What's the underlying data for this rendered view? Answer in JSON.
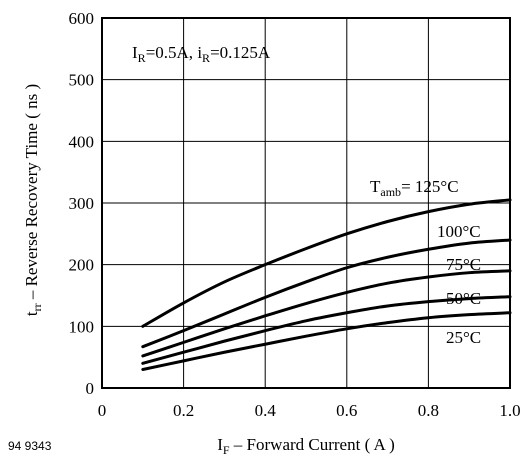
{
  "chart_data": {
    "type": "line",
    "xlabel": "I_F – Forward Current ( A )",
    "xlabel_main": "I",
    "xlabel_sub": "F",
    "xlabel_rest": " – Forward Current ( A )",
    "ylabel": "t_rr – Reverse Recovery Time ( ns )",
    "ylabel_main": "t",
    "ylabel_sub": "rr",
    "ylabel_rest": " – Reverse Recovery Time ( ns )",
    "xlim": [
      0,
      1.0
    ],
    "ylim": [
      0,
      600
    ],
    "x_ticks": [
      0,
      0.2,
      0.4,
      0.6,
      0.8,
      1.0
    ],
    "x_tick_labels": [
      "0",
      "0.2",
      "0.4",
      "0.6",
      "0.8",
      "1.0"
    ],
    "y_ticks": [
      0,
      100,
      200,
      300,
      400,
      500,
      600
    ],
    "y_tick_labels": [
      "0",
      "100",
      "200",
      "300",
      "400",
      "500",
      "600"
    ],
    "grid": true,
    "annotation": {
      "ir_main": "I",
      "ir_sub": "R",
      "ir_val": "=0.5A, ",
      "irr_main": "i",
      "irr_sub": "R",
      "irr_val": "=0.125A"
    },
    "series_label_prefix_main": "T",
    "series_label_prefix_sub": "amb",
    "series_label_prefix_eq": "=",
    "series": [
      {
        "name": "125°C",
        "x": [
          0.1,
          0.2,
          0.3,
          0.4,
          0.5,
          0.6,
          0.7,
          0.8,
          0.9,
          1.0
        ],
        "values": [
          100,
          138,
          172,
          200,
          226,
          250,
          270,
          286,
          298,
          305
        ]
      },
      {
        "name": "100°C",
        "x": [
          0.1,
          0.2,
          0.3,
          0.4,
          0.5,
          0.6,
          0.7,
          0.8,
          0.9,
          1.0
        ],
        "values": [
          67,
          93,
          120,
          147,
          172,
          195,
          212,
          225,
          235,
          240
        ]
      },
      {
        "name": "75°C",
        "x": [
          0.1,
          0.2,
          0.3,
          0.4,
          0.5,
          0.6,
          0.7,
          0.8,
          0.9,
          1.0
        ],
        "values": [
          52,
          74,
          96,
          117,
          137,
          155,
          170,
          180,
          187,
          190
        ]
      },
      {
        "name": "50°C",
        "x": [
          0.1,
          0.2,
          0.3,
          0.4,
          0.5,
          0.6,
          0.7,
          0.8,
          0.9,
          1.0
        ],
        "values": [
          40,
          58,
          76,
          93,
          109,
          122,
          133,
          140,
          145,
          148
        ]
      },
      {
        "name": "25°C",
        "x": [
          0.1,
          0.2,
          0.3,
          0.4,
          0.5,
          0.6,
          0.7,
          0.8,
          0.9,
          1.0
        ],
        "values": [
          30,
          44,
          58,
          71,
          84,
          96,
          106,
          114,
          119,
          122
        ]
      }
    ],
    "figure_id": "94 9343"
  }
}
